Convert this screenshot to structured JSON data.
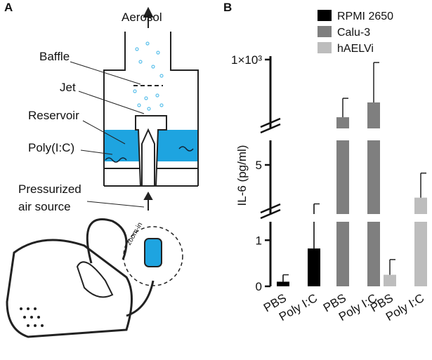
{
  "panel_a": {
    "label": "A",
    "aerosol": "Aerosol",
    "baffle": "Baffle",
    "jet": "Jet",
    "reservoir": "Reservoir",
    "poly_ic": "Poly(I:C)",
    "pressurized": "Pressurized",
    "air_source": "air source",
    "zoom_in": "zoom-in"
  },
  "chart_data": {
    "type": "bar",
    "panel_label": "B",
    "y_label": "IL-6 (pg/ml)",
    "categories": [
      "PBS",
      "Poly I:C"
    ],
    "series": [
      {
        "name": "RPMI 2650",
        "color": "#000000",
        "values": [
          0.1,
          0.82
        ],
        "errors": [
          0.15,
          1.8
        ]
      },
      {
        "name": "Calu-3",
        "color": "#7f7f7f",
        "values": [
          665,
          751
        ],
        "errors": [
          110,
          232
        ]
      },
      {
        "name": "hAELVi",
        "color": "#bdbdbd",
        "values": [
          0.25,
          3.0
        ],
        "errors": [
          0.33,
          1.5
        ]
      }
    ],
    "ylim": [
      0,
      1020
    ],
    "axis_breaks": [
      [
        1.4,
        2
      ],
      [
        6.5,
        600
      ]
    ],
    "yticks": [
      0,
      1,
      5,
      {
        "value": 1000,
        "label": "1×10³"
      }
    ]
  }
}
